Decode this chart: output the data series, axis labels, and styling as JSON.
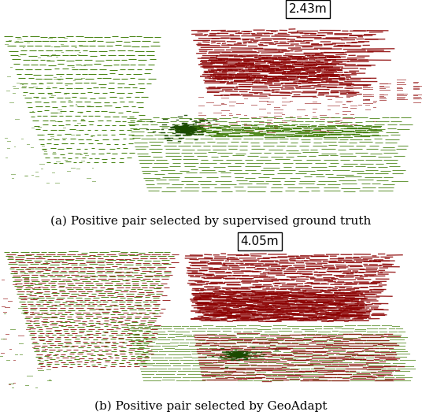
{
  "fig_width": 5.36,
  "fig_height": 5.32,
  "dpi": 100,
  "background_color": "#ffffff",
  "top_label": "2.43m",
  "bottom_label": "4.05m",
  "caption_a": "(a) Positive pair selected by supervised ground truth",
  "caption_b": "(b) Positive pair selected by GeoAdapt",
  "caption_fontsize": 11.0,
  "label_fontsize": 11,
  "green_color": "#3a7a00",
  "dark_green_color": "#1a4a00",
  "red_color": "#8b0000",
  "seed": 42
}
